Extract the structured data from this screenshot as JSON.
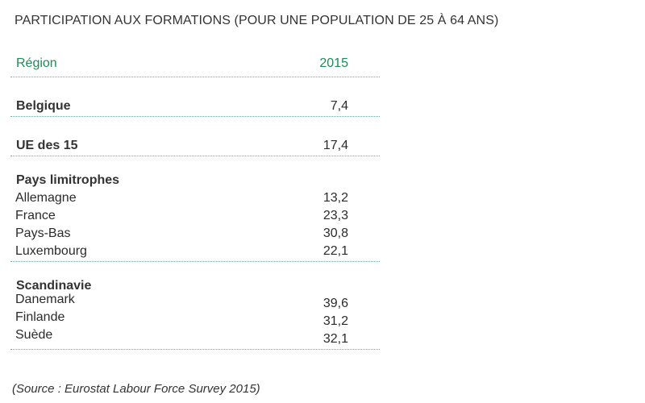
{
  "title": "PARTICIPATION AUX FORMATIONS (POUR UNE POPULATION DE 25 À 64 ANS)",
  "table": {
    "header": {
      "label": "Région",
      "value": "2015"
    },
    "belgique": {
      "label": "Belgique",
      "value": "7,4"
    },
    "ue15": {
      "label": "UE des 15",
      "value": "17,4"
    },
    "limitrophes": {
      "heading": "Pays limitrophes",
      "rows": [
        {
          "label": "Allemagne",
          "value": "13,2"
        },
        {
          "label": "France",
          "value": "23,3"
        },
        {
          "label": "Pays-Bas",
          "value": "30,8"
        },
        {
          "label": "Luxembourg",
          "value": "22,1"
        }
      ]
    },
    "scandinavie": {
      "heading": "Scandinavie",
      "rows": [
        {
          "label": "Danemark",
          "value": "39,6"
        },
        {
          "label": "Finlande",
          "value": "31,2"
        },
        {
          "label": "Suède",
          "value": "32,1"
        }
      ]
    }
  },
  "source": "(Source : Eurostat Labour Force Survey 2015)",
  "colors": {
    "header_green": "#1e8c57",
    "divider": "#7aa7a2",
    "text": "#333333"
  }
}
